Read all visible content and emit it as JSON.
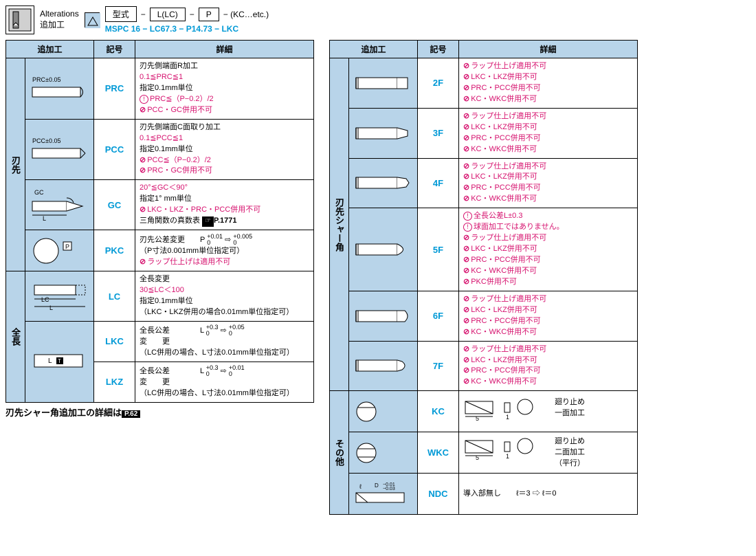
{
  "header": {
    "title_en": "Alterations",
    "title_jp": "追加工",
    "format": {
      "label_type": "型式",
      "dash": "−",
      "box_l": "L(LC)",
      "box_p": "P",
      "trailing": "− (KC…etc.)",
      "example": "MSPC 16   − LC67.3 − P14.73 − LKC"
    }
  },
  "columns": {
    "cat": "追加工",
    "symbol": "記号",
    "detail": "詳細"
  },
  "left": {
    "cat1": "刃先",
    "cat2": "全長",
    "rows": [
      {
        "diagram_label": "PRC±0.05",
        "symbol": "PRC",
        "detail": [
          {
            "t": "刃先側端面R加工"
          },
          {
            "t": "0.1≦PRC≦1",
            "c": "red"
          },
          {
            "t": "指定0.1mm単位"
          },
          {
            "t": "PRC≦（P−0.2）/2",
            "c": "note"
          },
          {
            "t": "PCC・GC併用不可",
            "c": "prohibit"
          }
        ]
      },
      {
        "diagram_label": "PCC±0.05",
        "symbol": "PCC",
        "detail": [
          {
            "t": "刃先側端面C面取り加工"
          },
          {
            "t": "0.1≦PCC≦1",
            "c": "red"
          },
          {
            "t": "指定0.1mm単位"
          },
          {
            "t": "PCC≦（P−0.2）/2",
            "c": "prohibit"
          },
          {
            "t": "PRC・GC併用不可",
            "c": "prohibit"
          }
        ]
      },
      {
        "diagram_label": "GC / L",
        "symbol": "GC",
        "detail": [
          {
            "t": "20°≦GC＜90°",
            "c": "red"
          },
          {
            "t": "指定1° mm単位"
          },
          {
            "t": "LKC・LKZ・PRC・PCC併用不可",
            "c": "prohibit"
          },
          {
            "t": "三角関数の真数表",
            "ref": "P.1771"
          }
        ]
      },
      {
        "diagram_label": "P",
        "symbol": "PKC",
        "detail": [
          {
            "t": "刃先公差変更　　P",
            "tol1": "+0.01/0",
            "arr": "⇨",
            "tol2": "+0.005/0"
          },
          {
            "t": "（P寸法0.001mm単位指定可）"
          },
          {
            "t": "ラップ仕上げは適用不可",
            "c": "prohibit"
          }
        ]
      },
      {
        "diagram_label": "LC / L",
        "symbol": "LC",
        "detail": [
          {
            "t": "全長変更"
          },
          {
            "t": "30≦LC＜100",
            "c": "red"
          },
          {
            "t": "指定0.1mm単位"
          },
          {
            "t": "（LKC・LKZ併用の場合0.01mm単位指定可）"
          }
        ]
      },
      {
        "diagram_label": "L",
        "symbol": "LKC",
        "detail": [
          {
            "t": "全長公差　　　　L",
            "post": "変　　更",
            "tol1": "+0.3/0",
            "arr": "⇨",
            "tol2": "+0.05/0"
          },
          {
            "t": "（LC併用の場合、L寸法0.01mm単位指定可）"
          }
        ]
      },
      {
        "diagram_label": "L",
        "symbol": "LKZ",
        "detail": [
          {
            "t": "全長公差　　　　L",
            "post": "変　　更",
            "tol1": "+0.3/0",
            "arr": "⇨",
            "tol2": "+0.01/0"
          },
          {
            "t": "（LC併用の場合、L寸法0.01mm単位指定可）"
          }
        ]
      }
    ]
  },
  "right": {
    "cat1": "刃先シャー角",
    "cat2": "その他",
    "shear_rows": [
      {
        "symbol": "2F",
        "detail": [
          {
            "t": "ラップ仕上げ適用不可",
            "c": "prohibit"
          },
          {
            "t": "LKC・LKZ併用不可",
            "c": "prohibit"
          },
          {
            "t": "PRC・PCC併用不可",
            "c": "prohibit"
          },
          {
            "t": "KC・WKC併用不可",
            "c": "prohibit"
          }
        ]
      },
      {
        "symbol": "3F",
        "detail": [
          {
            "t": "ラップ仕上げ適用不可",
            "c": "prohibit"
          },
          {
            "t": "LKC・LKZ併用不可",
            "c": "prohibit"
          },
          {
            "t": "PRC・PCC併用不可",
            "c": "prohibit"
          },
          {
            "t": "KC・WKC併用不可",
            "c": "prohibit"
          }
        ]
      },
      {
        "symbol": "4F",
        "detail": [
          {
            "t": "ラップ仕上げ適用不可",
            "c": "prohibit"
          },
          {
            "t": "LKC・LKZ併用不可",
            "c": "prohibit"
          },
          {
            "t": "PRC・PCC併用不可",
            "c": "prohibit"
          },
          {
            "t": "KC・WKC併用不可",
            "c": "prohibit"
          }
        ]
      },
      {
        "symbol": "5F",
        "detail": [
          {
            "t": "全長公差L±0.3",
            "c": "note"
          },
          {
            "t": "球面加工ではありません。",
            "c": "note"
          },
          {
            "t": "ラップ仕上げ適用不可",
            "c": "prohibit"
          },
          {
            "t": "LKC・LKZ併用不可",
            "c": "prohibit"
          },
          {
            "t": "PRC・PCC併用不可",
            "c": "prohibit"
          },
          {
            "t": "KC・WKC併用不可",
            "c": "prohibit"
          },
          {
            "t": "PKC併用不可",
            "c": "prohibit"
          }
        ]
      },
      {
        "symbol": "6F",
        "detail": [
          {
            "t": "ラップ仕上げ適用不可",
            "c": "prohibit"
          },
          {
            "t": "LKC・LKZ併用不可",
            "c": "prohibit"
          },
          {
            "t": "PRC・PCC併用不可",
            "c": "prohibit"
          },
          {
            "t": "KC・WKC併用不可",
            "c": "prohibit"
          }
        ]
      },
      {
        "symbol": "7F",
        "detail": [
          {
            "t": "ラップ仕上げ適用不可",
            "c": "prohibit"
          },
          {
            "t": "LKC・LKZ併用不可",
            "c": "prohibit"
          },
          {
            "t": "PRC・PCC併用不可",
            "c": "prohibit"
          },
          {
            "t": "KC・WKC併用不可",
            "c": "prohibit"
          }
        ]
      }
    ],
    "other_rows": [
      {
        "symbol": "KC",
        "label1": "5",
        "label2": "1",
        "text": "廻り止め\n一面加工"
      },
      {
        "symbol": "WKC",
        "label1": "5",
        "label2": "1",
        "text": "廻り止め\n二面加工\n（平行）"
      },
      {
        "symbol": "NDC",
        "diag": "ℓ  D −0.01/−0.03",
        "text": "導入部無し　　ℓ＝3 ⇨ ℓ＝0"
      }
    ]
  },
  "footer": "刃先シャー角追加工の詳細は",
  "footer_ref": "P.62"
}
